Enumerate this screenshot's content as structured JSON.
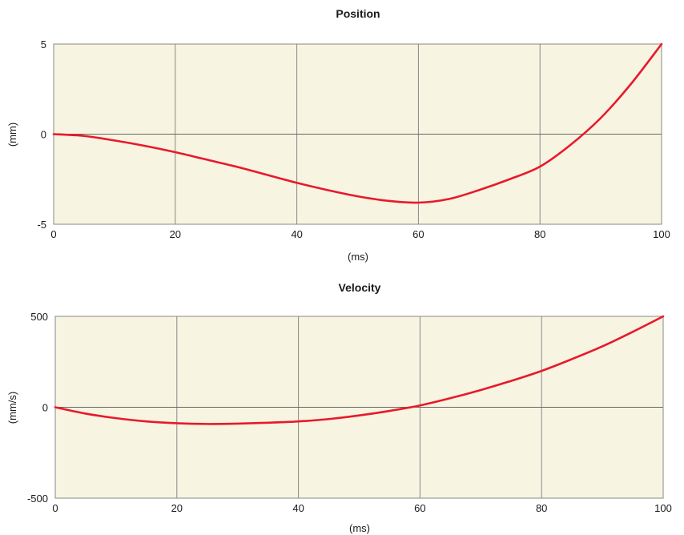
{
  "chart_data": [
    {
      "type": "line",
      "title": "Position",
      "xlabel": "(ms)",
      "ylabel": "(mm)",
      "xlim": [
        0,
        100
      ],
      "ylim": [
        -5,
        5
      ],
      "x_ticks": [
        0,
        20,
        40,
        60,
        80,
        100
      ],
      "y_ticks": [
        -5,
        0,
        5
      ],
      "grid": true,
      "colors": {
        "background": "#f7f4e1",
        "grid": "#888888",
        "line": "#e8192c",
        "zero_line": "#666666"
      },
      "series": [
        {
          "x": [
            0,
            5,
            10,
            15,
            20,
            25,
            30,
            35,
            40,
            45,
            50,
            55,
            60,
            65,
            70,
            75,
            80,
            85,
            90,
            95,
            100
          ],
          "values": [
            0.0,
            -0.1,
            -0.35,
            -0.65,
            -1.0,
            -1.4,
            -1.8,
            -2.25,
            -2.7,
            -3.1,
            -3.45,
            -3.7,
            -3.8,
            -3.6,
            -3.1,
            -2.5,
            -1.8,
            -0.6,
            0.9,
            2.8,
            5.0
          ]
        }
      ]
    },
    {
      "type": "line",
      "title": "Velocity",
      "xlabel": "(ms)",
      "ylabel": "(mm/s)",
      "xlim": [
        0,
        100
      ],
      "ylim": [
        -500,
        500
      ],
      "x_ticks": [
        0,
        20,
        40,
        60,
        80,
        100
      ],
      "y_ticks": [
        -500,
        0,
        500
      ],
      "grid": true,
      "colors": {
        "background": "#f7f4e1",
        "grid": "#888888",
        "line": "#e8192c",
        "zero_line": "#666666"
      },
      "series": [
        {
          "x": [
            0,
            5,
            10,
            15,
            20,
            25,
            30,
            35,
            40,
            45,
            50,
            55,
            60,
            65,
            70,
            75,
            80,
            85,
            90,
            95,
            100
          ],
          "values": [
            0,
            -35,
            -60,
            -78,
            -88,
            -92,
            -90,
            -85,
            -78,
            -65,
            -45,
            -20,
            10,
            50,
            95,
            145,
            200,
            265,
            335,
            415,
            500
          ]
        }
      ]
    }
  ]
}
